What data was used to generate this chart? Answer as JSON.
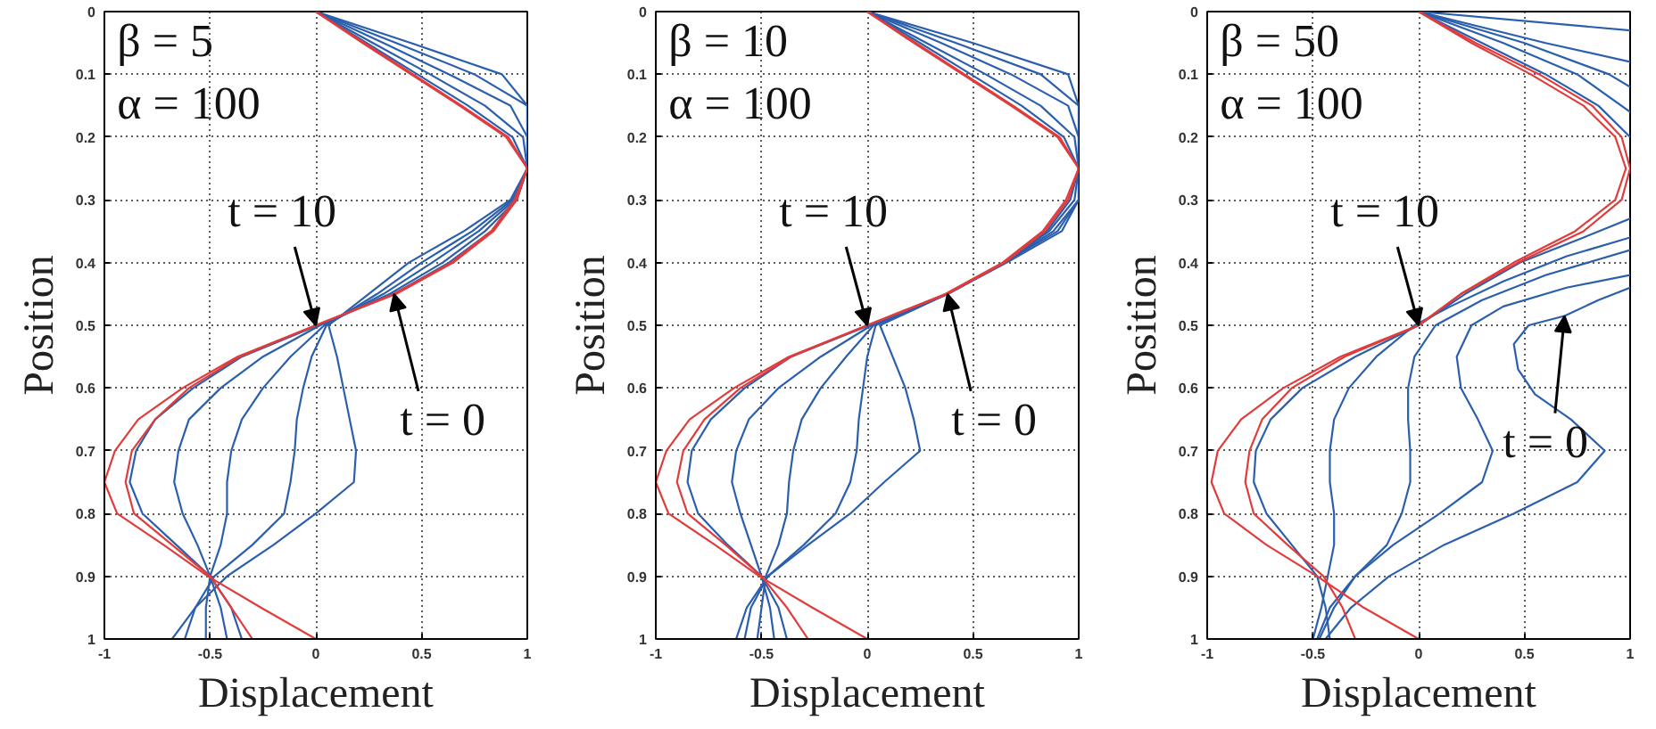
{
  "chart_data": [
    {
      "type": "line",
      "xlabel": "Displacement",
      "ylabel": "Position",
      "xlim": [
        -1,
        1
      ],
      "ylim": [
        1,
        0
      ],
      "xticks": [
        -1,
        -0.5,
        0,
        0.5,
        1
      ],
      "yticks": [
        0,
        0.1,
        0.2,
        0.3,
        0.4,
        0.5,
        0.6,
        0.7,
        0.8,
        0.9,
        1
      ],
      "grid": true,
      "annotations": [
        "β = 5",
        "α = 100",
        {
          "text": "t = 10",
          "x": 0,
          "y": 0.5
        },
        {
          "text": "t = 0",
          "x": 0.37,
          "y": 0.45
        }
      ],
      "series": [
        {
          "color": "#2b5fad",
          "x": [
            0,
            0.45,
            0.88,
            1,
            1,
            1,
            0.92,
            0.7,
            0.44,
            0.25,
            0.06,
            0.1,
            0.13,
            0.16,
            0.19,
            0.18,
            0,
            -0.2,
            -0.42,
            -0.57,
            -0.68
          ],
          "values": [
            0,
            0.05,
            0.1,
            0.15,
            0.2,
            0.25,
            0.3,
            0.35,
            0.4,
            0.45,
            0.5,
            0.55,
            0.6,
            0.65,
            0.7,
            0.75,
            0.8,
            0.85,
            0.9,
            0.95,
            1
          ]
        },
        {
          "color": "#2b5fad",
          "x": [
            0,
            0.38,
            0.75,
            1,
            1,
            1,
            0.93,
            0.74,
            0.5,
            0.29,
            0.05,
            -0.02,
            -0.06,
            -0.09,
            -0.1,
            -0.12,
            -0.15,
            -0.3,
            -0.48,
            -0.57,
            -0.62
          ],
          "values": [
            0,
            0.05,
            0.1,
            0.15,
            0.2,
            0.25,
            0.3,
            0.35,
            0.4,
            0.45,
            0.5,
            0.55,
            0.6,
            0.65,
            0.7,
            0.75,
            0.8,
            0.85,
            0.9,
            0.95,
            1
          ]
        },
        {
          "color": "#2b5fad",
          "x": [
            0,
            0.32,
            0.63,
            0.92,
            1,
            1,
            0.94,
            0.77,
            0.55,
            0.32,
            0.04,
            -0.12,
            -0.25,
            -0.35,
            -0.4,
            -0.42,
            -0.42,
            -0.45,
            -0.5,
            -0.52,
            -0.52
          ],
          "values": [
            0,
            0.05,
            0.1,
            0.15,
            0.2,
            0.25,
            0.3,
            0.35,
            0.4,
            0.45,
            0.5,
            0.55,
            0.6,
            0.65,
            0.7,
            0.75,
            0.8,
            0.85,
            0.9,
            0.95,
            1
          ]
        },
        {
          "color": "#2b5fad",
          "x": [
            0,
            0.27,
            0.54,
            0.8,
            0.98,
            1,
            0.95,
            0.8,
            0.6,
            0.35,
            0.02,
            -0.25,
            -0.45,
            -0.6,
            -0.65,
            -0.67,
            -0.63,
            -0.56,
            -0.5,
            -0.45,
            -0.42
          ],
          "values": [
            0,
            0.05,
            0.1,
            0.15,
            0.2,
            0.25,
            0.3,
            0.35,
            0.4,
            0.45,
            0.5,
            0.55,
            0.6,
            0.65,
            0.7,
            0.75,
            0.8,
            0.85,
            0.9,
            0.95,
            1
          ]
        },
        {
          "color": "#2b5fad",
          "x": [
            0,
            0.24,
            0.48,
            0.72,
            0.93,
            1,
            0.95,
            0.83,
            0.63,
            0.37,
            0.01,
            -0.35,
            -0.58,
            -0.76,
            -0.85,
            -0.88,
            -0.82,
            -0.66,
            -0.5,
            -0.4,
            -0.35
          ],
          "values": [
            0,
            0.05,
            0.1,
            0.15,
            0.2,
            0.25,
            0.3,
            0.35,
            0.4,
            0.45,
            0.5,
            0.55,
            0.6,
            0.65,
            0.7,
            0.75,
            0.8,
            0.85,
            0.9,
            0.95,
            1
          ]
        },
        {
          "color": "#e03c3c",
          "x": [
            0,
            0.22,
            0.45,
            0.68,
            0.9,
            1,
            0.94,
            0.83,
            0.64,
            0.37,
            0,
            -0.36,
            -0.6,
            -0.76,
            -0.87,
            -0.9,
            -0.86,
            -0.68,
            -0.5,
            -0.4,
            -0.3
          ],
          "values": [
            0,
            0.05,
            0.1,
            0.15,
            0.2,
            0.25,
            0.3,
            0.35,
            0.4,
            0.45,
            0.5,
            0.55,
            0.6,
            0.65,
            0.7,
            0.75,
            0.8,
            0.85,
            0.9,
            0.95,
            1
          ]
        },
        {
          "color": "#e03c3c",
          "x": [
            0,
            0.23,
            0.46,
            0.69,
            0.91,
            1,
            0.95,
            0.84,
            0.65,
            0.38,
            0,
            -0.37,
            -0.63,
            -0.84,
            -0.95,
            -1,
            -0.94,
            -0.72,
            -0.51,
            -0.26,
            0
          ],
          "values": [
            0,
            0.05,
            0.1,
            0.15,
            0.2,
            0.25,
            0.3,
            0.35,
            0.4,
            0.45,
            0.5,
            0.55,
            0.6,
            0.65,
            0.7,
            0.75,
            0.8,
            0.85,
            0.9,
            0.95,
            1
          ]
        }
      ]
    },
    {
      "type": "line",
      "xlabel": "Displacement",
      "ylabel": "Position",
      "xlim": [
        -1,
        1
      ],
      "ylim": [
        1,
        0
      ],
      "xticks": [
        -1,
        -0.5,
        0,
        0.5,
        1
      ],
      "yticks": [
        0,
        0.1,
        0.2,
        0.3,
        0.4,
        0.5,
        0.6,
        0.7,
        0.8,
        0.9,
        1
      ],
      "grid": true,
      "annotations": [
        "β = 10",
        "α = 100",
        {
          "text": "t = 10",
          "x": 0,
          "y": 0.5
        },
        {
          "text": "t = 0",
          "x": 0.38,
          "y": 0.45
        }
      ],
      "series": [
        {
          "color": "#2b5fad",
          "x": [
            0,
            0.5,
            0.95,
            1,
            1,
            1,
            1,
            0.92,
            0.66,
            0.38,
            0.06,
            0.12,
            0.18,
            0.22,
            0.25,
            0.08,
            -0.08,
            -0.28,
            -0.47,
            -0.57,
            -0.62
          ],
          "values": [
            0,
            0.05,
            0.1,
            0.15,
            0.2,
            0.25,
            0.3,
            0.35,
            0.4,
            0.45,
            0.5,
            0.55,
            0.6,
            0.65,
            0.7,
            0.75,
            0.8,
            0.85,
            0.9,
            0.95,
            1
          ]
        },
        {
          "color": "#2b5fad",
          "x": [
            0,
            0.42,
            0.82,
            1,
            1,
            1,
            1,
            0.9,
            0.65,
            0.38,
            0.04,
            0,
            -0.02,
            -0.04,
            -0.05,
            -0.08,
            -0.15,
            -0.3,
            -0.47,
            -0.55,
            -0.58
          ],
          "values": [
            0,
            0.05,
            0.1,
            0.15,
            0.2,
            0.25,
            0.3,
            0.35,
            0.4,
            0.45,
            0.5,
            0.55,
            0.6,
            0.65,
            0.7,
            0.75,
            0.8,
            0.85,
            0.9,
            0.95,
            1
          ]
        },
        {
          "color": "#2b5fad",
          "x": [
            0,
            0.35,
            0.68,
            0.95,
            1,
            1,
            1,
            0.88,
            0.65,
            0.38,
            0.03,
            -0.1,
            -0.22,
            -0.31,
            -0.35,
            -0.37,
            -0.38,
            -0.42,
            -0.48,
            -0.5,
            -0.52
          ],
          "values": [
            0,
            0.05,
            0.1,
            0.15,
            0.2,
            0.25,
            0.3,
            0.35,
            0.4,
            0.45,
            0.5,
            0.55,
            0.6,
            0.65,
            0.7,
            0.75,
            0.8,
            0.85,
            0.9,
            0.95,
            1
          ]
        },
        {
          "color": "#2b5fad",
          "x": [
            0,
            0.28,
            0.56,
            0.82,
            0.98,
            1,
            0.98,
            0.86,
            0.65,
            0.38,
            0.02,
            -0.22,
            -0.42,
            -0.56,
            -0.62,
            -0.64,
            -0.6,
            -0.55,
            -0.5,
            -0.46,
            -0.44
          ],
          "values": [
            0,
            0.05,
            0.1,
            0.15,
            0.2,
            0.25,
            0.3,
            0.35,
            0.4,
            0.45,
            0.5,
            0.55,
            0.6,
            0.65,
            0.7,
            0.75,
            0.8,
            0.85,
            0.9,
            0.95,
            1
          ]
        },
        {
          "color": "#2b5fad",
          "x": [
            0,
            0.25,
            0.49,
            0.73,
            0.93,
            1,
            0.96,
            0.85,
            0.65,
            0.38,
            0.01,
            -0.36,
            -0.58,
            -0.74,
            -0.83,
            -0.85,
            -0.8,
            -0.66,
            -0.5,
            -0.42,
            -0.38
          ],
          "values": [
            0,
            0.05,
            0.1,
            0.15,
            0.2,
            0.25,
            0.3,
            0.35,
            0.4,
            0.45,
            0.5,
            0.55,
            0.6,
            0.65,
            0.7,
            0.75,
            0.8,
            0.85,
            0.9,
            0.95,
            1
          ]
        },
        {
          "color": "#e03c3c",
          "x": [
            0,
            0.22,
            0.45,
            0.68,
            0.9,
            1,
            0.94,
            0.83,
            0.64,
            0.37,
            0,
            -0.36,
            -0.6,
            -0.77,
            -0.87,
            -0.9,
            -0.85,
            -0.67,
            -0.5,
            -0.38,
            -0.28
          ],
          "values": [
            0,
            0.05,
            0.1,
            0.15,
            0.2,
            0.25,
            0.3,
            0.35,
            0.4,
            0.45,
            0.5,
            0.55,
            0.6,
            0.65,
            0.7,
            0.75,
            0.8,
            0.85,
            0.9,
            0.95,
            1
          ]
        },
        {
          "color": "#e03c3c",
          "x": [
            0,
            0.23,
            0.46,
            0.69,
            0.91,
            1,
            0.95,
            0.84,
            0.65,
            0.38,
            0,
            -0.37,
            -0.63,
            -0.84,
            -0.95,
            -1,
            -0.94,
            -0.72,
            -0.51,
            -0.26,
            0
          ],
          "values": [
            0,
            0.05,
            0.1,
            0.15,
            0.2,
            0.25,
            0.3,
            0.35,
            0.4,
            0.45,
            0.5,
            0.55,
            0.6,
            0.65,
            0.7,
            0.75,
            0.8,
            0.85,
            0.9,
            0.95,
            1
          ]
        }
      ]
    },
    {
      "type": "line",
      "xlabel": "Displacement",
      "ylabel": "Position",
      "xlim": [
        -1,
        1
      ],
      "ylim": [
        1,
        0
      ],
      "xticks": [
        -1,
        -0.5,
        0,
        0.5,
        1
      ],
      "yticks": [
        0,
        0.1,
        0.2,
        0.3,
        0.4,
        0.5,
        0.6,
        0.7,
        0.8,
        0.9,
        1
      ],
      "grid": true,
      "annotations": [
        "β = 50",
        "α = 100",
        {
          "text": "t = 10",
          "x": 0,
          "y": 0.5
        },
        {
          "text": "t = 0",
          "x": 0.69,
          "y": 0.485
        }
      ],
      "series": [
        {
          "color": "#2b5fad",
          "x": [
            0,
            1
          ],
          "values": [
            0,
            0.03
          ]
        },
        {
          "color": "#2b5fad",
          "x": [
            1,
            0.85,
            0.69,
            0.52,
            0.45,
            0.47,
            0.55,
            0.72,
            0.88,
            0.75,
            0.45,
            0.12,
            -0.14,
            -0.32,
            -0.44
          ],
          "values": [
            0.44,
            0.46,
            0.485,
            0.5,
            0.53,
            0.57,
            0.61,
            0.65,
            0.7,
            0.75,
            0.8,
            0.85,
            0.9,
            0.95,
            1
          ]
        },
        {
          "color": "#2b5fad",
          "x": [
            0,
            0.6,
            1
          ],
          "values": [
            0,
            0.05,
            0.08
          ]
        },
        {
          "color": "#2b5fad",
          "x": [
            1,
            0.7,
            0.4,
            0.25,
            0.18,
            0.2,
            0.28,
            0.35,
            0.3,
            0.1,
            -0.12,
            -0.3,
            -0.4,
            -0.47
          ],
          "values": [
            0.42,
            0.44,
            0.47,
            0.5,
            0.55,
            0.6,
            0.65,
            0.7,
            0.75,
            0.8,
            0.85,
            0.9,
            0.95,
            1
          ]
        },
        {
          "color": "#2b5fad",
          "x": [
            0,
            0.5,
            0.9,
            1
          ],
          "values": [
            0,
            0.05,
            0.1,
            0.12
          ]
        },
        {
          "color": "#2b5fad",
          "x": [
            1,
            0.6,
            0.3,
            0.08,
            -0.02,
            -0.05,
            -0.05,
            -0.04,
            -0.04,
            -0.08,
            -0.15,
            -0.3,
            -0.42,
            -0.48
          ],
          "values": [
            0.38,
            0.42,
            0.46,
            0.5,
            0.55,
            0.6,
            0.65,
            0.7,
            0.75,
            0.8,
            0.85,
            0.9,
            0.95,
            1
          ]
        },
        {
          "color": "#2b5fad",
          "x": [
            0,
            0.4,
            0.75,
            1
          ],
          "values": [
            0,
            0.05,
            0.1,
            0.16
          ]
        },
        {
          "color": "#2b5fad",
          "x": [
            1,
            0.7,
            0.4,
            0.15,
            -0.02,
            -0.2,
            -0.33,
            -0.4,
            -0.42,
            -0.42,
            -0.4,
            -0.4,
            -0.43,
            -0.46,
            -0.5
          ],
          "values": [
            0.36,
            0.39,
            0.43,
            0.47,
            0.5,
            0.55,
            0.6,
            0.65,
            0.7,
            0.75,
            0.8,
            0.85,
            0.9,
            0.95,
            1
          ]
        },
        {
          "color": "#2b5fad",
          "x": [
            0,
            0.3,
            0.6,
            0.85,
            1
          ],
          "values": [
            0,
            0.05,
            0.1,
            0.15,
            0.2
          ]
        },
        {
          "color": "#2b5fad",
          "x": [
            1,
            0.78,
            0.48,
            0.22,
            0,
            -0.3,
            -0.55,
            -0.7,
            -0.77,
            -0.78,
            -0.72,
            -0.6,
            -0.48,
            -0.44,
            -0.42
          ],
          "values": [
            0.33,
            0.36,
            0.4,
            0.45,
            0.5,
            0.55,
            0.6,
            0.65,
            0.7,
            0.75,
            0.8,
            0.85,
            0.9,
            0.95,
            1
          ]
        },
        {
          "color": "#e03c3c",
          "x": [
            0,
            0.25,
            0.53,
            0.78,
            0.93,
            0.98,
            0.93,
            0.74,
            0.45,
            0.2,
            0,
            -0.35,
            -0.6,
            -0.74,
            -0.8,
            -0.82,
            -0.78,
            -0.62,
            -0.45,
            -0.36,
            -0.3
          ],
          "values": [
            0,
            0.05,
            0.1,
            0.15,
            0.2,
            0.25,
            0.3,
            0.35,
            0.4,
            0.45,
            0.5,
            0.55,
            0.6,
            0.65,
            0.7,
            0.75,
            0.8,
            0.85,
            0.9,
            0.95,
            1
          ]
        },
        {
          "color": "#e03c3c",
          "x": [
            0,
            0.27,
            0.57,
            0.82,
            0.96,
            1,
            0.96,
            0.78,
            0.47,
            0.2,
            0,
            -0.37,
            -0.64,
            -0.84,
            -0.95,
            -0.98,
            -0.92,
            -0.72,
            -0.48,
            -0.26,
            0
          ],
          "values": [
            0,
            0.05,
            0.1,
            0.15,
            0.2,
            0.25,
            0.3,
            0.35,
            0.4,
            0.45,
            0.5,
            0.55,
            0.6,
            0.65,
            0.7,
            0.75,
            0.8,
            0.85,
            0.9,
            0.95,
            1
          ]
        }
      ]
    }
  ]
}
